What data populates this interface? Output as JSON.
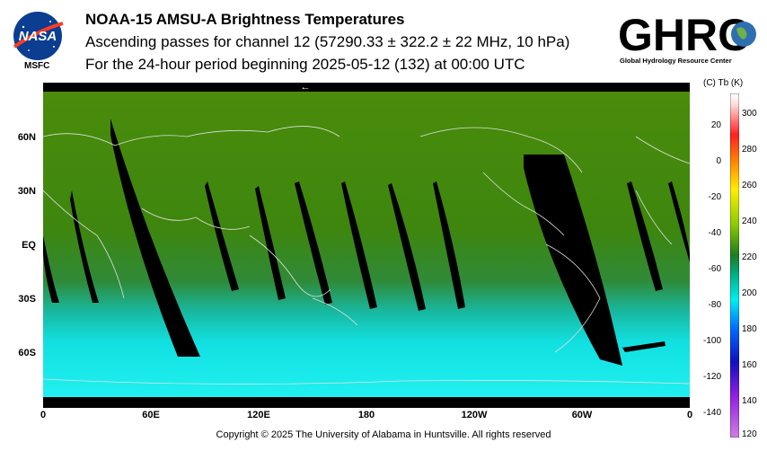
{
  "title": "NOAA-15 AMSU-A Brightness Temperatures",
  "subtitle1": "Ascending passes for channel 12 (57290.33 ± 322.2 ± 22 MHz, 10 hPa)",
  "subtitle2": "For the 24-hour period beginning 2025-05-12 (132) at 00:00 UTC",
  "logos": {
    "left_text": "NASA",
    "left_label": "MSFC",
    "right_text": "GHRC",
    "right_sub": "Global Hydrology Resource Center"
  },
  "map": {
    "lat_labels": [
      "60N",
      "30N",
      "EQ",
      "30S",
      "60S"
    ],
    "lon_labels": [
      "0",
      "60E",
      "120E",
      "180",
      "120W",
      "60W",
      "0"
    ],
    "direction_arrow": "←"
  },
  "colorbar": {
    "header": "(C)  Tb  (K)",
    "celsius_ticks": [
      "20",
      "0",
      "-20",
      "-40",
      "-60",
      "-80",
      "-100",
      "-120",
      "-140"
    ],
    "kelvin_ticks": [
      "300",
      "280",
      "260",
      "240",
      "220",
      "200",
      "180",
      "160",
      "140",
      "120"
    ]
  },
  "copyright": "Copyright © 2025 The University of Alabama in Huntsville.  All rights reserved",
  "colors": {
    "ocean_green": "#3f8a0a",
    "tropics_green": "#2f7f1a",
    "south_cyan": "#10e6e6",
    "swath_gap": "#000000"
  }
}
